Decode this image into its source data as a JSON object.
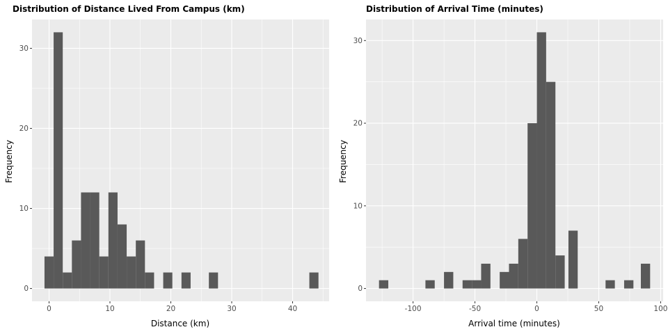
{
  "chart_data": [
    {
      "type": "bar",
      "title": "Distribution of Distance Lived From Campus (km)",
      "xlabel": "Distance (km)",
      "ylabel": "Frequency",
      "xlim": [
        -2.8,
        46.0
      ],
      "ylim": [
        -1.6,
        33.6
      ],
      "xticks": [
        0,
        10,
        20,
        30,
        40
      ],
      "yticks": [
        0,
        10,
        20,
        30
      ],
      "tick_labels_x": [
        "0",
        "10",
        "20",
        "30",
        "40"
      ],
      "tick_labels_y": [
        "0",
        "10",
        "20",
        "30"
      ],
      "grid": true,
      "bins": [
        {
          "x0": -0.75,
          "x1": 0.75,
          "count": 4
        },
        {
          "x0": 0.75,
          "x1": 2.25,
          "count": 32
        },
        {
          "x0": 2.25,
          "x1": 3.75,
          "count": 2
        },
        {
          "x0": 3.75,
          "x1": 5.25,
          "count": 6
        },
        {
          "x0": 5.25,
          "x1": 6.75,
          "count": 12
        },
        {
          "x0": 6.75,
          "x1": 8.25,
          "count": 12
        },
        {
          "x0": 8.25,
          "x1": 9.75,
          "count": 4
        },
        {
          "x0": 9.75,
          "x1": 11.25,
          "count": 12
        },
        {
          "x0": 11.25,
          "x1": 12.75,
          "count": 8
        },
        {
          "x0": 12.75,
          "x1": 14.25,
          "count": 4
        },
        {
          "x0": 14.25,
          "x1": 15.75,
          "count": 6
        },
        {
          "x0": 15.75,
          "x1": 17.25,
          "count": 2
        },
        {
          "x0": 18.75,
          "x1": 20.25,
          "count": 2
        },
        {
          "x0": 21.75,
          "x1": 23.25,
          "count": 2
        },
        {
          "x0": 26.25,
          "x1": 27.75,
          "count": 2
        },
        {
          "x0": 42.75,
          "x1": 44.25,
          "count": 2
        }
      ]
    },
    {
      "type": "bar",
      "title": "Distribution of Arrival Time (minutes)",
      "xlabel": "Arrival time (minutes)",
      "ylabel": "Frequency",
      "xlim": [
        -138,
        102
      ],
      "ylim": [
        -1.55,
        32.55
      ],
      "xticks": [
        -100,
        -50,
        0,
        50,
        100
      ],
      "yticks": [
        0,
        10,
        20,
        30
      ],
      "tick_labels_x": [
        "-100",
        "-50",
        "0",
        "50",
        "100"
      ],
      "tick_labels_y": [
        "0",
        "10",
        "20",
        "30"
      ],
      "grid": true,
      "bins": [
        {
          "x0": -127.5,
          "x1": -120,
          "count": 1
        },
        {
          "x0": -90,
          "x1": -82.5,
          "count": 1
        },
        {
          "x0": -75,
          "x1": -67.5,
          "count": 2
        },
        {
          "x0": -60,
          "x1": -52.5,
          "count": 1
        },
        {
          "x0": -52.5,
          "x1": -45,
          "count": 1
        },
        {
          "x0": -45,
          "x1": -37.5,
          "count": 3
        },
        {
          "x0": -30,
          "x1": -22.5,
          "count": 2
        },
        {
          "x0": -22.5,
          "x1": -15,
          "count": 3
        },
        {
          "x0": -15,
          "x1": -7.5,
          "count": 6
        },
        {
          "x0": -7.5,
          "x1": 0,
          "count": 20
        },
        {
          "x0": 0,
          "x1": 7.5,
          "count": 31
        },
        {
          "x0": 7.5,
          "x1": 15,
          "count": 25
        },
        {
          "x0": 15,
          "x1": 22.5,
          "count": 4
        },
        {
          "x0": 25.5,
          "x1": 33,
          "count": 7
        },
        {
          "x0": 55.5,
          "x1": 63,
          "count": 1
        },
        {
          "x0": 70.5,
          "x1": 78,
          "count": 1
        },
        {
          "x0": 84,
          "x1": 91.5,
          "count": 3
        }
      ]
    }
  ]
}
